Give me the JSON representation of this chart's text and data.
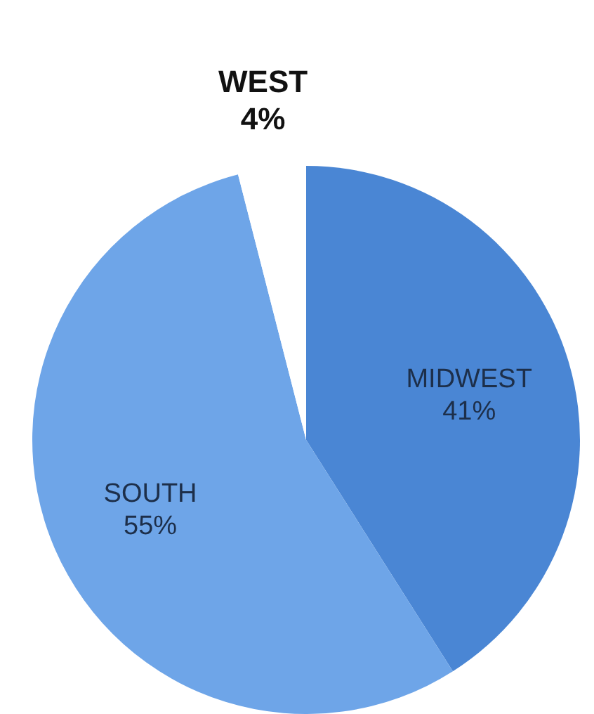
{
  "chart_data": {
    "type": "pie",
    "categories": [
      "MIDWEST",
      "SOUTH",
      "WEST"
    ],
    "values": [
      41,
      55,
      4
    ],
    "colors": [
      "#4a86d4",
      "#6ea5e8",
      "#ffffff"
    ],
    "value_labels": [
      "41%",
      "55%",
      "4%"
    ]
  }
}
